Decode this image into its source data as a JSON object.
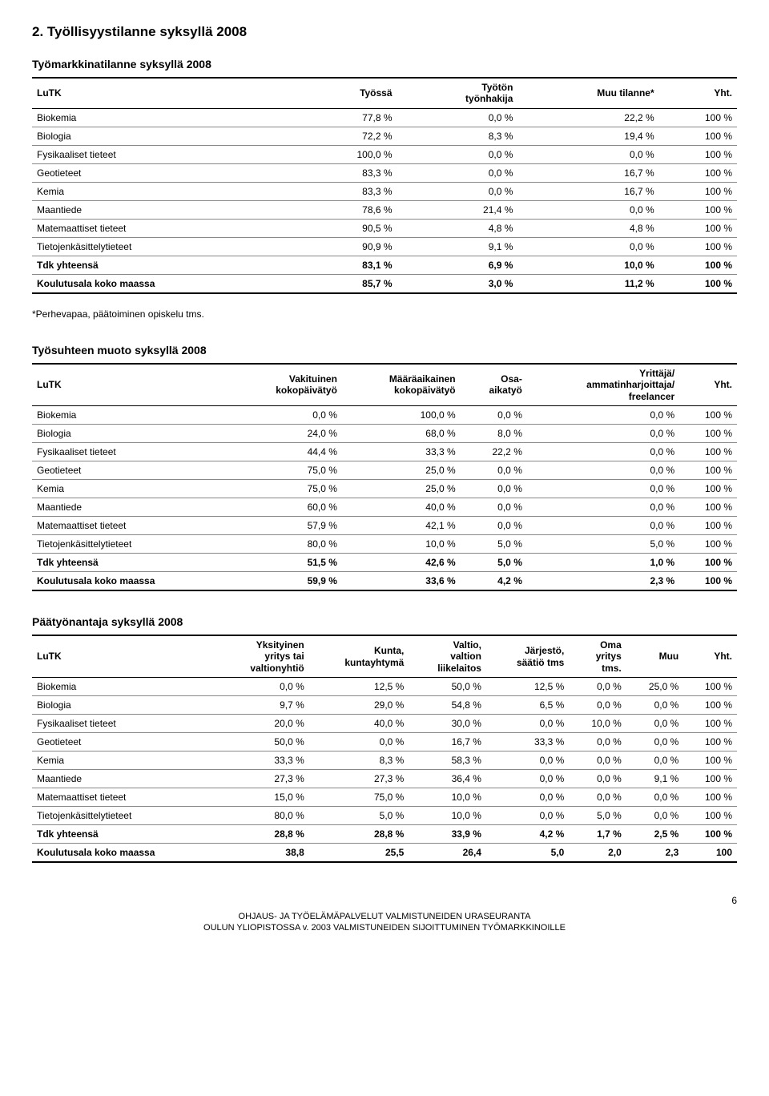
{
  "section_title": "2. Työllisyystilanne syksyllä 2008",
  "table1": {
    "title": "Työmarkkinatilanne syksyllä 2008",
    "columns": [
      "LuTK",
      "Työssä",
      "Työtön\ntyönhakija",
      "Muu tilanne*",
      "Yht."
    ],
    "rows": [
      [
        "Biokemia",
        "77,8 %",
        "0,0 %",
        "22,2 %",
        "100 %"
      ],
      [
        "Biologia",
        "72,2 %",
        "8,3 %",
        "19,4 %",
        "100 %"
      ],
      [
        "Fysikaaliset tieteet",
        "100,0 %",
        "0,0 %",
        "0,0 %",
        "100 %"
      ],
      [
        "Geotieteet",
        "83,3 %",
        "0,0 %",
        "16,7 %",
        "100 %"
      ],
      [
        "Kemia",
        "83,3 %",
        "0,0 %",
        "16,7 %",
        "100 %"
      ],
      [
        "Maantiede",
        "78,6 %",
        "21,4 %",
        "0,0 %",
        "100 %"
      ],
      [
        "Matemaattiset tieteet",
        "90,5 %",
        "4,8 %",
        "4,8 %",
        "100 %"
      ],
      [
        "Tietojenkäsittelytieteet",
        "90,9 %",
        "9,1 %",
        "0,0 %",
        "100 %"
      ],
      [
        "Tdk yhteensä",
        "83,1 %",
        "6,9 %",
        "10,0 %",
        "100 %"
      ],
      [
        "Koulutusala koko maassa",
        "85,7 %",
        "3,0 %",
        "11,2 %",
        "100 %"
      ]
    ],
    "bold_rows": [
      8,
      9
    ],
    "note": "*Perhevapaa, päätoiminen opiskelu tms."
  },
  "table2": {
    "title": "Työsuhteen muoto syksyllä 2008",
    "columns": [
      "LuTK",
      "Vakituinen\nkokopäivätyö",
      "Määräaikainen\nkokopäivätyö",
      "Osa-\naikatyö",
      "Yrittäjä/\nammatinharjoittaja/\nfreelancer",
      "Yht."
    ],
    "rows": [
      [
        "Biokemia",
        "0,0 %",
        "100,0 %",
        "0,0 %",
        "0,0 %",
        "100 %"
      ],
      [
        "Biologia",
        "24,0 %",
        "68,0 %",
        "8,0 %",
        "0,0 %",
        "100 %"
      ],
      [
        "Fysikaaliset tieteet",
        "44,4 %",
        "33,3 %",
        "22,2 %",
        "0,0 %",
        "100 %"
      ],
      [
        "Geotieteet",
        "75,0 %",
        "25,0 %",
        "0,0 %",
        "0,0 %",
        "100 %"
      ],
      [
        "Kemia",
        "75,0 %",
        "25,0 %",
        "0,0 %",
        "0,0 %",
        "100 %"
      ],
      [
        "Maantiede",
        "60,0 %",
        "40,0 %",
        "0,0 %",
        "0,0 %",
        "100 %"
      ],
      [
        "Matemaattiset tieteet",
        "57,9 %",
        "42,1 %",
        "0,0 %",
        "0,0 %",
        "100 %"
      ],
      [
        "Tietojenkäsittelytieteet",
        "80,0 %",
        "10,0 %",
        "5,0 %",
        "5,0 %",
        "100 %"
      ],
      [
        "Tdk yhteensä",
        "51,5 %",
        "42,6 %",
        "5,0 %",
        "1,0 %",
        "100 %"
      ],
      [
        "Koulutusala koko maassa",
        "59,9 %",
        "33,6 %",
        "4,2 %",
        "2,3 %",
        "100 %"
      ]
    ],
    "bold_rows": [
      8,
      9
    ]
  },
  "table3": {
    "title": "Päätyönantaja syksyllä 2008",
    "columns": [
      "LuTK",
      "Yksityinen\nyritys tai\nvaltionyhtiö",
      "Kunta,\nkuntayhtymä",
      "Valtio,\nvaltion\nliikelaitos",
      "Järjestö,\nsäätiö tms",
      "Oma\nyritys\ntms.",
      "Muu",
      "Yht."
    ],
    "rows": [
      [
        "Biokemia",
        "0,0 %",
        "12,5 %",
        "50,0 %",
        "12,5 %",
        "0,0 %",
        "25,0 %",
        "100 %"
      ],
      [
        "Biologia",
        "9,7 %",
        "29,0 %",
        "54,8 %",
        "6,5 %",
        "0,0 %",
        "0,0 %",
        "100 %"
      ],
      [
        "Fysikaaliset tieteet",
        "20,0 %",
        "40,0 %",
        "30,0 %",
        "0,0 %",
        "10,0 %",
        "0,0 %",
        "100 %"
      ],
      [
        "Geotieteet",
        "50,0 %",
        "0,0 %",
        "16,7 %",
        "33,3 %",
        "0,0 %",
        "0,0 %",
        "100 %"
      ],
      [
        "Kemia",
        "33,3 %",
        "8,3 %",
        "58,3 %",
        "0,0 %",
        "0,0 %",
        "0,0 %",
        "100 %"
      ],
      [
        "Maantiede",
        "27,3 %",
        "27,3 %",
        "36,4 %",
        "0,0 %",
        "0,0 %",
        "9,1 %",
        "100 %"
      ],
      [
        "Matemaattiset tieteet",
        "15,0 %",
        "75,0 %",
        "10,0 %",
        "0,0 %",
        "0,0 %",
        "0,0 %",
        "100 %"
      ],
      [
        "Tietojenkäsittelytieteet",
        "80,0 %",
        "5,0 %",
        "10,0 %",
        "0,0 %",
        "5,0 %",
        "0,0 %",
        "100 %"
      ],
      [
        "Tdk yhteensä",
        "28,8 %",
        "28,8 %",
        "33,9 %",
        "4,2 %",
        "1,7 %",
        "2,5 %",
        "100 %"
      ],
      [
        "Koulutusala koko maassa",
        "38,8",
        "25,5",
        "26,4",
        "5,0",
        "2,0",
        "2,3",
        "100"
      ]
    ],
    "bold_rows": [
      8,
      9
    ]
  },
  "footer": {
    "line1": "OHJAUS- JA TYÖELÄMÄPALVELUT     VALMISTUNEIDEN URASEURANTA",
    "line2": "OULUN YLIOPISTOSSA v. 2003 VALMISTUNEIDEN SIJOITTUMINEN TYÖMARKKINOILLE",
    "page": "6"
  }
}
